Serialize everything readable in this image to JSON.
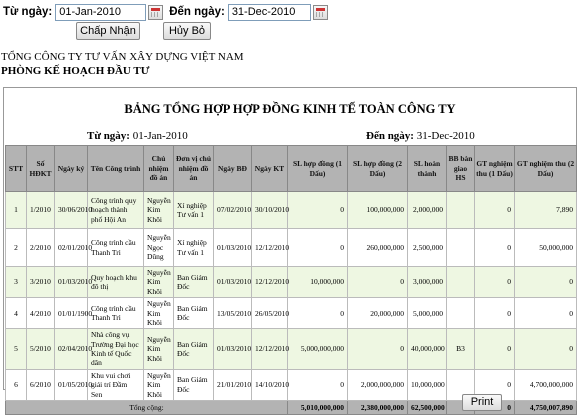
{
  "filter": {
    "from_label": "Từ ngày:",
    "from_value": "01-Jan-2010",
    "to_label": "Đến ngày:",
    "to_value": "31-Dec-2010",
    "accept_button": "Chấp Nhận",
    "cancel_button": "Hủy Bỏ"
  },
  "header": {
    "company": "TỔNG CÔNG TY TƯ VẤN XÂY DỰNG VIỆT NAM",
    "department": "PHÒNG KẾ HOẠCH ĐẦU TƯ"
  },
  "report": {
    "title": "BẢNG TỔNG HỢP HỢP ĐỒNG KINH TẾ TOÀN CÔNG TY",
    "from_label": "Từ ngày:",
    "from_value": "01-Jan-2010",
    "to_label": "Đến ngày:",
    "to_value": "31-Dec-2010",
    "columns": [
      "STT",
      "Số HĐKT",
      "Ngày ký",
      "Tên Công trình",
      "Chủ nhiệm đồ án",
      "Đơn vị chủ nhiệm đồ án",
      "Ngày BĐ",
      "Ngày KT",
      "SL hợp đồng (1 Dấu)",
      "SL hợp đồng (2 Dấu)",
      "SL hoàn thành",
      "BB bàn giao HS",
      "GT nghiệm thu (1 Dấu)",
      "GT nghiệm thu (2 Dấu)"
    ],
    "rows": [
      [
        "1",
        "1/2010",
        "30/06/2010",
        "Công trình quy hoạch thành phố Hội An",
        "Nguyễn Kim Khôi",
        "Xí nghiệp Tư vấn 1",
        "07/02/2010",
        "30/10/2010",
        "0",
        "100,000,000",
        "2,000,000",
        "",
        "0",
        "7,890"
      ],
      [
        "2",
        "2/2010",
        "02/01/2010",
        "Công trình cầu Thanh Trì",
        "Nguyễn Ngọc Dũng",
        "Xí nghiệp Tư vấn 1",
        "01/03/2010",
        "12/12/2010",
        "0",
        "260,000,000",
        "2,500,000",
        "",
        "0",
        "50,000,000"
      ],
      [
        "3",
        "3/2010",
        "01/03/2010",
        "Quy hoạch khu đô thị",
        "Nguyễn Kim Khôi",
        "Ban Giám Đốc",
        "01/03/2010",
        "12/12/2010",
        "10,000,000",
        "0",
        "3,000,000",
        "",
        "0",
        "0"
      ],
      [
        "4",
        "4/2010",
        "01/01/1900",
        "Công trình cầu Thanh Trì",
        "Nguyễn Kim Khôi",
        "Ban Giám Đốc",
        "13/05/2010",
        "26/05/2010",
        "0",
        "20,000,000",
        "5,000,000",
        "",
        "0",
        "0"
      ],
      [
        "5",
        "5/2010",
        "02/04/2010",
        "Nhà công vụ Trường Đại học Kinh tế Quốc dân",
        "Nguyễn Kim Khôi",
        "Ban Giám Đốc",
        "01/03/2010",
        "12/12/2010",
        "5,000,000,000",
        "0",
        "40,000,000",
        "B3",
        "0",
        "0"
      ],
      [
        "6",
        "6/2010",
        "01/05/2010",
        "Khu vui chơi giải trí Đầm Sen",
        "Nguyễn Kim Khôi",
        "Ban Giám Đốc",
        "21/01/2010",
        "14/10/2010",
        "0",
        "2,000,000,000",
        "10,000,000",
        "",
        "0",
        "4,700,000,000"
      ]
    ],
    "total_label": "Tổng cộng:",
    "totals": {
      "sl1": "5,010,000,000",
      "sl2": "2,380,000,000",
      "done": "62,500,000",
      "bb": "",
      "gt1": "0",
      "gt2": "4,750,007,890"
    }
  },
  "print_button": "Print"
}
